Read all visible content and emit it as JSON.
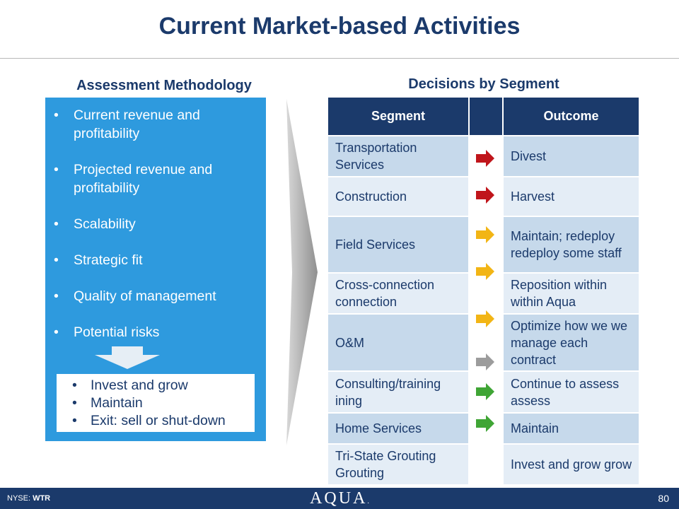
{
  "title": "Current Market-based Activities",
  "left": {
    "heading": "Assessment Methodology",
    "criteria": [
      "Current revenue and profitability",
      "Projected revenue and profitability",
      "Scalability",
      "Strategic fit",
      "Quality of management",
      "Potential risks"
    ],
    "outcomes": [
      "Invest and grow",
      "Maintain",
      "Exit: sell or shut-down"
    ],
    "bullet": "•"
  },
  "right": {
    "heading": "Decisions by Segment",
    "columns": {
      "segment": "Segment",
      "arrow": "",
      "outcome": "Outcome"
    },
    "rows": [
      {
        "segment": "Transportation Services",
        "outcome": "Divest"
      },
      {
        "segment": "Construction",
        "outcome": "Harvest"
      },
      {
        "segment": "Field Services",
        "outcome": "Maintain; redeploy redeploy some staff"
      },
      {
        "segment": "Cross-connection connection",
        "outcome": "Reposition within within Aqua"
      },
      {
        "segment": "O&M",
        "outcome": "Optimize how we we manage each contract"
      },
      {
        "segment": "Consulting/training ining",
        "outcome": "Continue to assess assess"
      },
      {
        "segment": "Home Services",
        "outcome": "Maintain"
      },
      {
        "segment": "Tri-State Grouting Grouting",
        "outcome": "Invest and grow grow"
      }
    ],
    "arrows": [
      {
        "icon": "arrow-right-icon",
        "color": "#c0151b"
      },
      {
        "icon": "arrow-right-icon",
        "color": "#c0151b"
      },
      {
        "icon": "arrow-right-icon",
        "color": "#f2b515"
      },
      {
        "icon": "arrow-right-icon",
        "color": "#f2b515"
      },
      {
        "icon": "arrow-right-icon",
        "color": "#f2b515"
      },
      {
        "icon": "arrow-right-icon",
        "color": "#9c9c9c"
      },
      {
        "icon": "arrow-right-icon",
        "color": "#3fa535"
      },
      {
        "icon": "arrow-right-icon",
        "color": "#3fa535"
      }
    ]
  },
  "footer": {
    "exchange": "NYSE:",
    "ticker": "WTR",
    "logo": "AQUA",
    "logo_mark": ".",
    "page_number": "80"
  },
  "colors": {
    "navy": "#1b3a6b",
    "blue_box": "#2e9ade",
    "row_dark": "#c6d9eb",
    "row_light": "#e4edf6"
  }
}
